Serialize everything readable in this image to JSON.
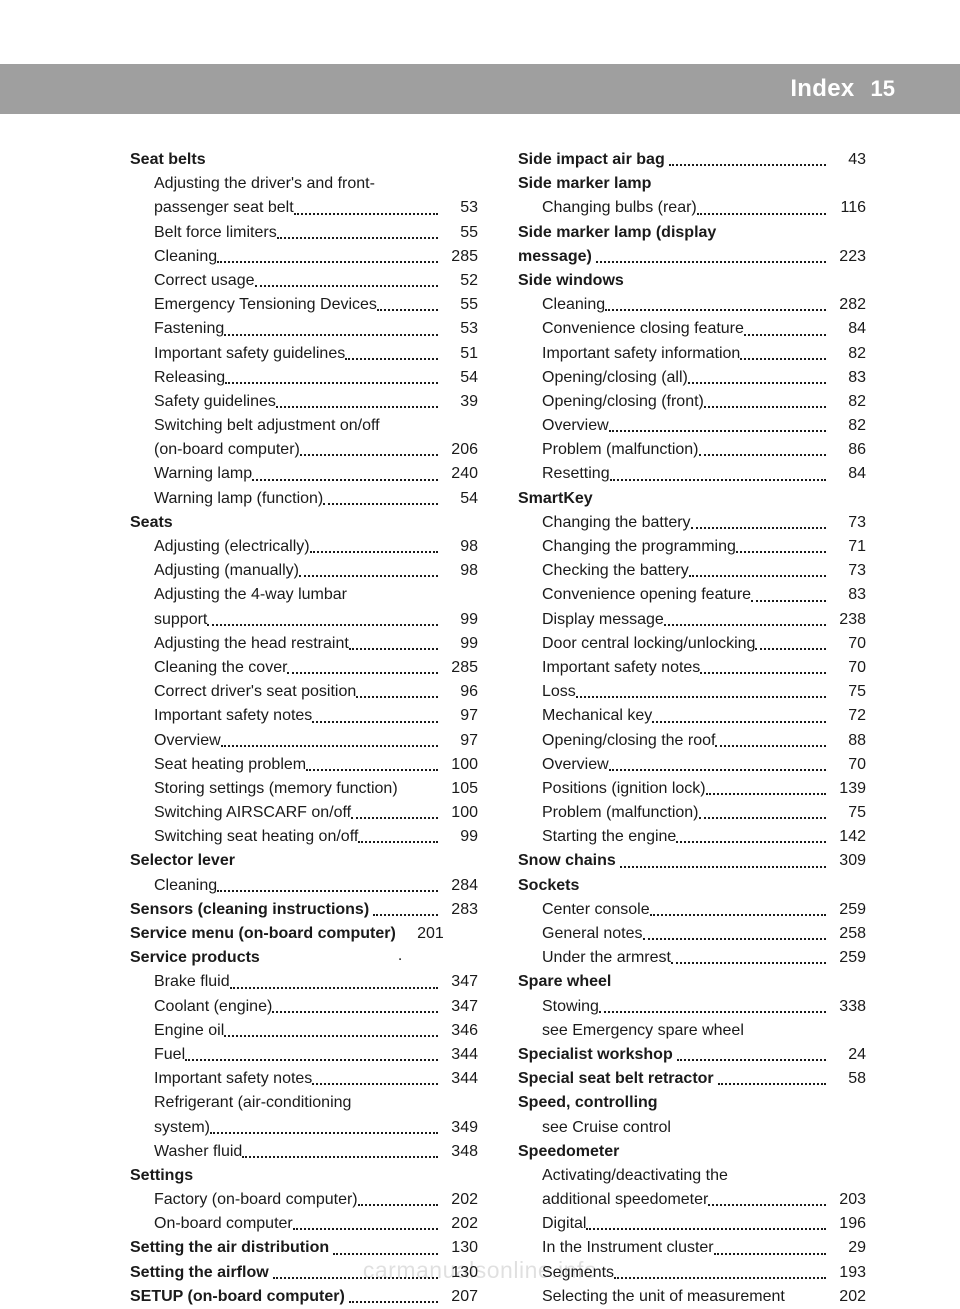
{
  "header": {
    "title": "Index",
    "page": "15"
  },
  "watermark": "carmanualsonline.info",
  "columns": [
    [
      {
        "type": "heading",
        "label": "Seat belts"
      },
      {
        "type": "sub-multi",
        "lines": [
          "Adjusting the driver's and front-",
          "passenger seat belt"
        ],
        "page": "53"
      },
      {
        "type": "sub",
        "label": "Belt force limiters",
        "page": "55"
      },
      {
        "type": "sub",
        "label": "Cleaning",
        "page": "285"
      },
      {
        "type": "sub",
        "label": "Correct usage",
        "page": "52"
      },
      {
        "type": "sub",
        "label": "Emergency Tensioning Devices",
        "page": "55"
      },
      {
        "type": "sub",
        "label": "Fastening",
        "page": "53"
      },
      {
        "type": "sub",
        "label": "Important safety guidelines",
        "page": "51"
      },
      {
        "type": "sub",
        "label": "Releasing",
        "page": "54"
      },
      {
        "type": "sub",
        "label": "Safety guidelines",
        "page": "39"
      },
      {
        "type": "sub-multi",
        "lines": [
          "Switching belt adjustment on/off",
          "(on-board computer)"
        ],
        "page": "206"
      },
      {
        "type": "sub",
        "label": "Warning lamp",
        "page": "240"
      },
      {
        "type": "sub",
        "label": "Warning lamp (function)",
        "page": "54"
      },
      {
        "type": "heading",
        "label": "Seats"
      },
      {
        "type": "sub",
        "label": "Adjusting (electrically)",
        "page": "98"
      },
      {
        "type": "sub",
        "label": "Adjusting (manually)",
        "page": "98"
      },
      {
        "type": "sub-multi",
        "lines": [
          "Adjusting the 4-way lumbar",
          "support"
        ],
        "page": "99"
      },
      {
        "type": "sub",
        "label": "Adjusting the head restraint",
        "page": "99"
      },
      {
        "type": "sub",
        "label": "Cleaning the cover",
        "page": "285"
      },
      {
        "type": "sub",
        "label": "Correct driver's seat position",
        "page": "96"
      },
      {
        "type": "sub",
        "label": "Important safety notes",
        "page": "97"
      },
      {
        "type": "sub",
        "label": "Overview",
        "page": "97"
      },
      {
        "type": "sub",
        "label": "Seat heating problem",
        "page": "100"
      },
      {
        "type": "sub-nodots",
        "label": "Storing settings (memory function)",
        "page": "105"
      },
      {
        "type": "sub",
        "label": "Switching AIRSCARF on/off",
        "page": "100"
      },
      {
        "type": "sub",
        "label": "Switching seat heating on/off",
        "page": "99"
      },
      {
        "type": "heading",
        "label": "Selector lever"
      },
      {
        "type": "sub",
        "label": "Cleaning",
        "page": "284"
      },
      {
        "type": "top",
        "label": "Sensors (cleaning instructions)",
        "page": "283"
      },
      {
        "type": "top",
        "label": "Service menu (on-board computer)",
        "page": "201",
        "dots": "short"
      },
      {
        "type": "heading",
        "label": "Service products"
      },
      {
        "type": "sub",
        "label": "Brake fluid",
        "page": "347"
      },
      {
        "type": "sub",
        "label": "Coolant (engine)",
        "page": "347"
      },
      {
        "type": "sub",
        "label": "Engine oil",
        "page": "346"
      },
      {
        "type": "sub",
        "label": "Fuel",
        "page": "344"
      },
      {
        "type": "sub",
        "label": "Important safety notes",
        "page": "344"
      },
      {
        "type": "sub-multi",
        "lines": [
          "Refrigerant (air-conditioning",
          "system)"
        ],
        "page": "349"
      },
      {
        "type": "sub",
        "label": "Washer fluid",
        "page": "348"
      },
      {
        "type": "heading",
        "label": "Settings"
      },
      {
        "type": "sub",
        "label": "Factory (on-board computer)",
        "page": "202"
      },
      {
        "type": "sub",
        "label": "On-board computer",
        "page": "202"
      },
      {
        "type": "top",
        "label": "Setting the air distribution",
        "page": "130"
      },
      {
        "type": "top",
        "label": "Setting the airflow",
        "page": "130"
      },
      {
        "type": "top",
        "label": "SETUP (on-board computer)",
        "page": "207"
      }
    ],
    [
      {
        "type": "top",
        "label": "Side impact air bag",
        "page": "43"
      },
      {
        "type": "heading",
        "label": "Side marker lamp"
      },
      {
        "type": "sub",
        "label": "Changing bulbs (rear)",
        "page": "116"
      },
      {
        "type": "top-multi",
        "lines": [
          "Side marker lamp (display",
          "message)"
        ],
        "page": "223"
      },
      {
        "type": "heading",
        "label": "Side windows"
      },
      {
        "type": "sub",
        "label": "Cleaning",
        "page": "282"
      },
      {
        "type": "sub",
        "label": "Convenience closing feature",
        "page": "84"
      },
      {
        "type": "sub",
        "label": "Important safety information",
        "page": "82"
      },
      {
        "type": "sub",
        "label": "Opening/closing (all)",
        "page": "83"
      },
      {
        "type": "sub",
        "label": "Opening/closing (front)",
        "page": "82"
      },
      {
        "type": "sub",
        "label": "Overview",
        "page": "82"
      },
      {
        "type": "sub",
        "label": "Problem (malfunction)",
        "page": "86"
      },
      {
        "type": "sub",
        "label": "Resetting",
        "page": "84"
      },
      {
        "type": "heading",
        "label": "SmartKey"
      },
      {
        "type": "sub",
        "label": "Changing the battery",
        "page": "73"
      },
      {
        "type": "sub",
        "label": "Changing the programming",
        "page": "71"
      },
      {
        "type": "sub",
        "label": "Checking the battery",
        "page": "73"
      },
      {
        "type": "sub",
        "label": "Convenience opening feature",
        "page": "83"
      },
      {
        "type": "sub",
        "label": "Display message",
        "page": "238"
      },
      {
        "type": "sub",
        "label": "Door central locking/unlocking",
        "page": "70"
      },
      {
        "type": "sub",
        "label": "Important safety notes",
        "page": "70"
      },
      {
        "type": "sub",
        "label": "Loss",
        "page": "75"
      },
      {
        "type": "sub",
        "label": "Mechanical key",
        "page": "72"
      },
      {
        "type": "sub",
        "label": "Opening/closing the roof",
        "page": "88"
      },
      {
        "type": "sub",
        "label": "Overview",
        "page": "70"
      },
      {
        "type": "sub",
        "label": "Positions (ignition lock)",
        "page": "139"
      },
      {
        "type": "sub",
        "label": "Problem (malfunction)",
        "page": "75"
      },
      {
        "type": "sub",
        "label": "Starting the engine",
        "page": "142"
      },
      {
        "type": "top",
        "label": "Snow chains",
        "page": "309"
      },
      {
        "type": "heading",
        "label": "Sockets"
      },
      {
        "type": "sub",
        "label": "Center console",
        "page": "259"
      },
      {
        "type": "sub",
        "label": "General notes",
        "page": "258"
      },
      {
        "type": "sub",
        "label": "Under the armrest",
        "page": "259"
      },
      {
        "type": "heading",
        "label": "Spare wheel"
      },
      {
        "type": "sub",
        "label": "Stowing",
        "page": "338"
      },
      {
        "type": "sub-see",
        "label": "see Emergency spare wheel"
      },
      {
        "type": "top",
        "label": "Specialist workshop",
        "page": "24"
      },
      {
        "type": "top",
        "label": "Special seat belt retractor",
        "page": "58"
      },
      {
        "type": "heading",
        "label": "Speed, controlling"
      },
      {
        "type": "sub-see",
        "label": "see Cruise control"
      },
      {
        "type": "heading",
        "label": "Speedometer"
      },
      {
        "type": "sub-multi",
        "lines": [
          "Activating/deactivating the",
          "additional speedometer"
        ],
        "page": "203"
      },
      {
        "type": "sub",
        "label": "Digital",
        "page": "196"
      },
      {
        "type": "sub",
        "label": "In the Instrument cluster",
        "page": "29"
      },
      {
        "type": "sub",
        "label": "Segments",
        "page": "193"
      },
      {
        "type": "sub-nodots",
        "label": "Selecting the unit of measurement",
        "page": "202"
      }
    ]
  ]
}
